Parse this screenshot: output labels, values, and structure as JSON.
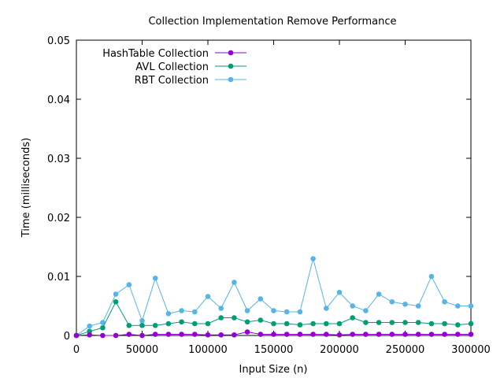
{
  "chart_data": {
    "type": "line",
    "title": "Collection Implementation Remove Performance",
    "xlabel": "Input Size (n)",
    "ylabel": "Time (milliseconds)",
    "xlim": [
      0,
      300000
    ],
    "ylim": [
      0,
      0.05
    ],
    "x_ticks": [
      0,
      50000,
      100000,
      150000,
      200000,
      250000,
      300000
    ],
    "x_tick_labels": [
      "0",
      "50000",
      "100000",
      "150000",
      "200000",
      "250000",
      "300000"
    ],
    "y_ticks": [
      0,
      0.01,
      0.02,
      0.03,
      0.04,
      0.05
    ],
    "y_tick_labels": [
      "0",
      "0.01",
      "0.02",
      "0.03",
      "0.04",
      "0.05"
    ],
    "grid": false,
    "legend_position": "top-left",
    "x": [
      0,
      10000,
      20000,
      30000,
      40000,
      50000,
      60000,
      70000,
      80000,
      90000,
      100000,
      110000,
      120000,
      130000,
      140000,
      150000,
      160000,
      170000,
      180000,
      190000,
      200000,
      210000,
      220000,
      230000,
      240000,
      250000,
      260000,
      270000,
      280000,
      290000,
      300000
    ],
    "series": [
      {
        "name": "HashTable Collection",
        "color": "#9400d3",
        "values": [
          0,
          0.0001,
          0,
          0,
          0.0002,
          0,
          0.0002,
          0.0002,
          0.0002,
          0.0002,
          0.0001,
          0.0001,
          0.0001,
          0.0006,
          0.0002,
          0.0002,
          0.0002,
          0.0002,
          0.0002,
          0.0002,
          0.0001,
          0.0002,
          0.0002,
          0.0002,
          0.0002,
          0.0002,
          0.0002,
          0.0002,
          0.0002,
          0.0002,
          0.0002
        ]
      },
      {
        "name": "AVL Collection",
        "color": "#009e73",
        "values": [
          0,
          0.0007,
          0.0013,
          0.0057,
          0.0017,
          0.0017,
          0.0017,
          0.002,
          0.0023,
          0.002,
          0.002,
          0.003,
          0.003,
          0.0023,
          0.0026,
          0.002,
          0.002,
          0.0018,
          0.002,
          0.002,
          0.002,
          0.003,
          0.0022,
          0.0022,
          0.0022,
          0.0022,
          0.0022,
          0.002,
          0.002,
          0.0018,
          0.002
        ]
      },
      {
        "name": "RBT Collection",
        "color": "#56b4e9",
        "values": [
          0,
          0.0016,
          0.0022,
          0.007,
          0.0086,
          0.0025,
          0.0097,
          0.0037,
          0.0042,
          0.004,
          0.0066,
          0.0046,
          0.009,
          0.0042,
          0.0062,
          0.0042,
          0.004,
          0.004,
          0.013,
          0.0046,
          0.0073,
          0.005,
          0.0042,
          0.007,
          0.0057,
          0.0053,
          0.005,
          0.01,
          0.0057,
          0.005,
          0.005
        ]
      }
    ]
  }
}
